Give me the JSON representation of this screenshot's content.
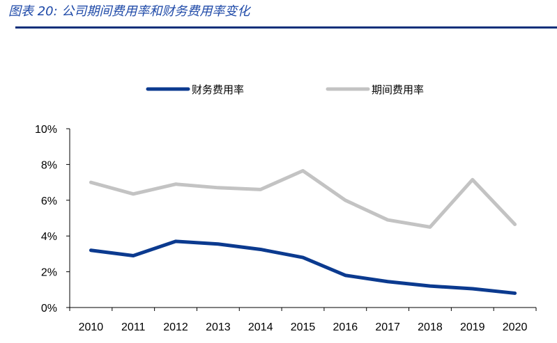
{
  "header": {
    "title": "图表 20:  公司期间费用率和财务费用率变化"
  },
  "chart_data": {
    "type": "line",
    "title": "",
    "xlabel": "",
    "ylabel": "",
    "categories": [
      "2010",
      "2011",
      "2012",
      "2013",
      "2014",
      "2015",
      "2016",
      "2017",
      "2018",
      "2019",
      "2020"
    ],
    "ylim": [
      0,
      10
    ],
    "yticks": [
      0,
      2,
      4,
      6,
      8,
      10
    ],
    "ytick_labels": [
      "0%",
      "2%",
      "4%",
      "6%",
      "8%",
      "10%"
    ],
    "legend_position": "top",
    "grid": false,
    "series": [
      {
        "name": "财务费用率",
        "color": "#0b3a8f",
        "values": [
          3.2,
          2.9,
          3.7,
          3.55,
          3.25,
          2.8,
          1.8,
          1.45,
          1.2,
          1.05,
          0.8
        ]
      },
      {
        "name": "期间费用率",
        "color": "#c3c3c3",
        "values": [
          7.0,
          6.35,
          6.9,
          6.7,
          6.6,
          7.65,
          6.0,
          4.9,
          4.5,
          7.15,
          4.65
        ]
      }
    ]
  }
}
